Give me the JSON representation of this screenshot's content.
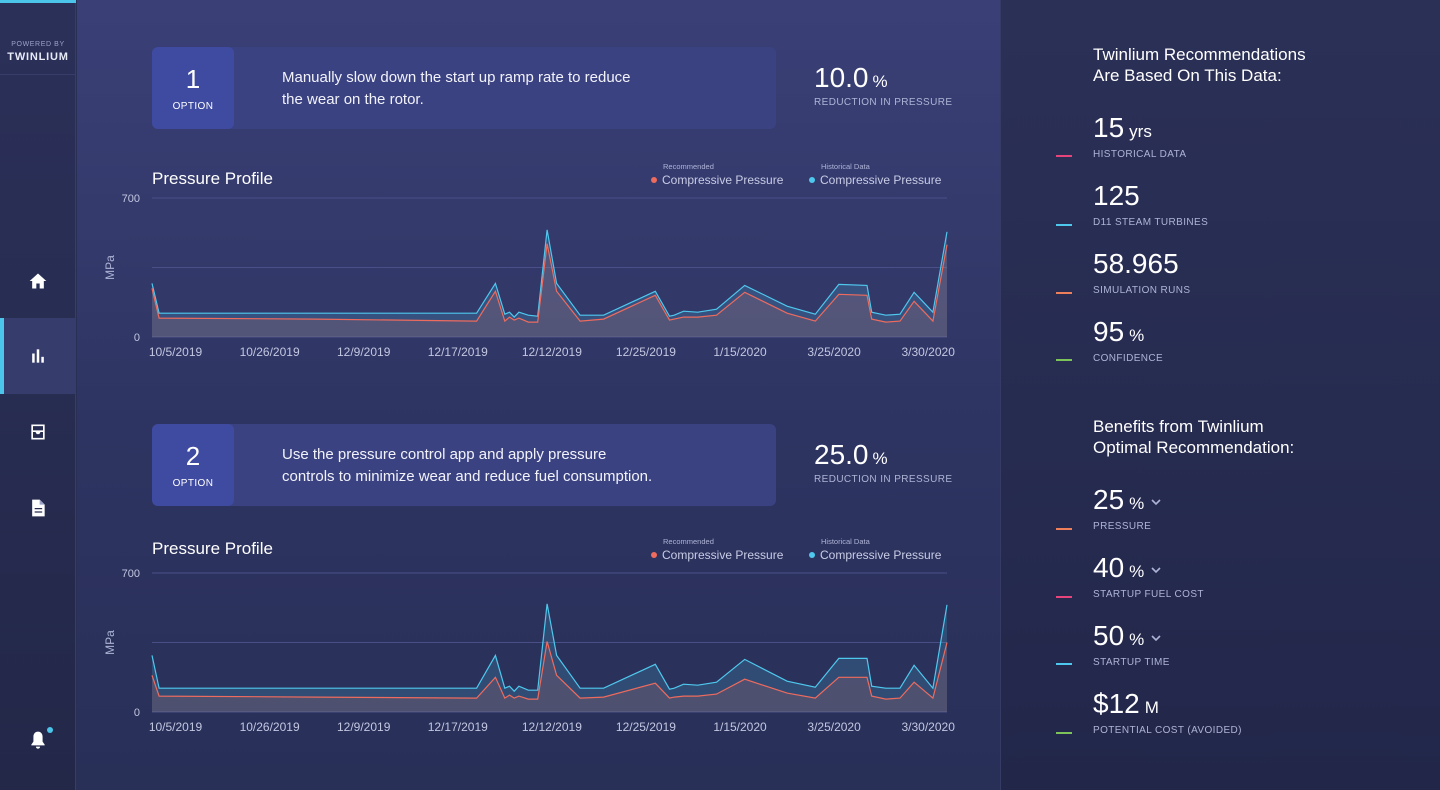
{
  "brand": {
    "powered_by": "POWERED BY",
    "name": "TWINLIUM"
  },
  "nav": {
    "items": [
      {
        "icon": "home-icon",
        "active": false
      },
      {
        "icon": "bar-chart-icon",
        "active": true
      },
      {
        "icon": "inbox-icon",
        "active": false
      },
      {
        "icon": "document-icon",
        "active": false
      }
    ],
    "notification_icon": "bell-icon"
  },
  "options": [
    {
      "number": "1",
      "label": "OPTION",
      "text_line1": "Manually slow down the start up ramp rate to reduce",
      "text_line2": "the wear on the rotor.",
      "reduction_value": "10.0",
      "reduction_unit": "%",
      "reduction_label": "REDUCTION IN PRESSURE"
    },
    {
      "number": "2",
      "label": "OPTION",
      "text_line1": "Use the pressure control app and apply pressure",
      "text_line2": "controls to minimize wear and reduce fuel consumption.",
      "reduction_value": "25.0",
      "reduction_unit": "%",
      "reduction_label": "REDUCTION IN PRESSURE"
    }
  ],
  "legend": {
    "recommended_sub": "Recommended",
    "recommended_label": "Compressive Pressure",
    "historical_sub": "Historical Data",
    "historical_label": "Compressive Pressure"
  },
  "colors": {
    "recommended": "#ee6b5e",
    "historical": "#4fc8ee",
    "accent": "#4bc5ea",
    "line_pink": "#e6447a",
    "line_blue": "#4fc8ee",
    "line_orange": "#ee7f5a",
    "line_green": "#7cc35a"
  },
  "chart_data": [
    {
      "type": "area",
      "title": "Pressure Profile",
      "ylabel": "MPa",
      "xlabel": "",
      "ylim": [
        0,
        700
      ],
      "yticks": [
        "700",
        "0"
      ],
      "grid": true,
      "legend_position": "top-right",
      "tick_labels": [
        "10/5/2019",
        "10/26/2019",
        "12/9/2019",
        "12/17/2019",
        "12/12/2019",
        "12/25/2019",
        "1/15/2020",
        "3/25/2020",
        "3/30/2020"
      ],
      "x": [
        0,
        0.075,
        1.75,
        3.45,
        3.65,
        3.75,
        3.8,
        3.85,
        3.9,
        4.0,
        4.1,
        4.2,
        4.3,
        4.55,
        4.8,
        5.35,
        5.5,
        5.55,
        5.65,
        5.8,
        6.0,
        6.3,
        6.75,
        7.05,
        7.3,
        7.6,
        7.65,
        7.8,
        7.95,
        8.1,
        8.3,
        8.45
      ],
      "series": [
        {
          "name": "Compressive Pressure",
          "values": [
            270,
            120,
            120,
            120,
            270,
            115,
            125,
            100,
            125,
            110,
            105,
            540,
            270,
            110,
            110,
            230,
            105,
            110,
            130,
            125,
            140,
            260,
            155,
            115,
            265,
            260,
            125,
            110,
            115,
            225,
            125,
            530
          ]
        },
        {
          "name": "Compressive Pressure",
          "values": [
            245,
            95,
            90,
            80,
            230,
            80,
            100,
            85,
            95,
            75,
            75,
            470,
            230,
            80,
            90,
            210,
            85,
            90,
            100,
            100,
            110,
            225,
            120,
            80,
            215,
            210,
            90,
            75,
            80,
            180,
            80,
            465
          ]
        }
      ]
    },
    {
      "type": "area",
      "title": "Pressure Profile",
      "ylabel": "MPa",
      "xlabel": "",
      "ylim": [
        0,
        700
      ],
      "yticks": [
        "700",
        "0"
      ],
      "grid": true,
      "legend_position": "top-right",
      "tick_labels": [
        "10/5/2019",
        "10/26/2019",
        "12/9/2019",
        "12/17/2019",
        "12/12/2019",
        "12/25/2019",
        "1/15/2020",
        "3/25/2020",
        "3/30/2020"
      ],
      "x": [
        0,
        0.075,
        1.75,
        3.45,
        3.65,
        3.75,
        3.8,
        3.85,
        3.9,
        4.0,
        4.1,
        4.2,
        4.3,
        4.55,
        4.8,
        5.35,
        5.5,
        5.55,
        5.65,
        5.8,
        6.0,
        6.3,
        6.75,
        7.05,
        7.3,
        7.6,
        7.65,
        7.8,
        7.95,
        8.1,
        8.3,
        8.45
      ],
      "series": [
        {
          "name": "Compressive Pressure",
          "values": [
            285,
            120,
            120,
            120,
            285,
            120,
            130,
            105,
            130,
            110,
            110,
            545,
            285,
            120,
            120,
            240,
            115,
            120,
            140,
            135,
            150,
            265,
            155,
            125,
            270,
            270,
            130,
            120,
            120,
            235,
            120,
            540
          ]
        },
        {
          "name": "Compressive Pressure",
          "values": [
            185,
            80,
            75,
            70,
            175,
            70,
            85,
            70,
            80,
            65,
            65,
            355,
            185,
            70,
            75,
            145,
            70,
            75,
            80,
            80,
            90,
            165,
            95,
            70,
            175,
            175,
            80,
            65,
            70,
            150,
            70,
            350
          ]
        }
      ]
    }
  ],
  "right": {
    "data_heading_line1": "Twinlium Recommendations",
    "data_heading_line2": "Are Based On This Data:",
    "data_metrics": [
      {
        "value": "15",
        "unit": "yrs",
        "label": "HISTORICAL DATA",
        "color": "#e6447a"
      },
      {
        "value": "125",
        "unit": "",
        "label": "D11 STEAM TURBINES",
        "color": "#4fc8ee"
      },
      {
        "value": "58.965",
        "unit": "",
        "label": "SIMULATION RUNS",
        "color": "#ee7f5a"
      },
      {
        "value": "95",
        "unit": "%",
        "label": "CONFIDENCE",
        "color": "#7cc35a"
      }
    ],
    "benefits_heading_line1": "Benefits from Twinlium",
    "benefits_heading_line2": "Optimal Recommendation:",
    "benefit_metrics": [
      {
        "value": "25",
        "unit": "%",
        "label": "PRESSURE",
        "color": "#ee7f5a",
        "icon": "chevron-down-icon"
      },
      {
        "value": "40",
        "unit": "%",
        "label": "STARTUP FUEL COST",
        "color": "#e6447a",
        "icon": "chevron-down-icon"
      },
      {
        "value": "50",
        "unit": "%",
        "label": "STARTUP TIME",
        "color": "#4fc8ee",
        "icon": "chevron-down-icon"
      },
      {
        "value": "$12",
        "unit": "M",
        "label": "POTENTIAL COST (AVOIDED)",
        "color": "#7cc35a"
      }
    ]
  }
}
